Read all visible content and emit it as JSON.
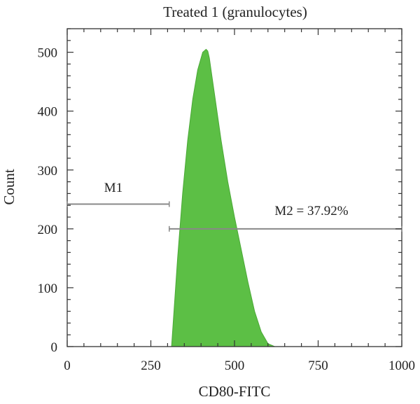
{
  "chart_data": {
    "type": "area",
    "title": "Treated 1 (granulocytes)",
    "xlabel": "CD80-FITC",
    "ylabel": "Count",
    "xlim": [
      0,
      1000
    ],
    "ylim": [
      0,
      540
    ],
    "xticks": [
      0,
      250,
      500,
      750,
      1000
    ],
    "yticks": [
      0,
      100,
      200,
      300,
      400,
      500
    ],
    "grid": false,
    "series": [
      {
        "color": "#5cbf45",
        "x": [
          312,
          330,
          345,
          360,
          375,
          390,
          405,
          415,
          420,
          425,
          430,
          440,
          460,
          480,
          500,
          520,
          540,
          560,
          580,
          600,
          620
        ],
        "y": [
          0,
          150,
          260,
          350,
          420,
          470,
          500,
          505,
          502,
          490,
          470,
          430,
          350,
          280,
          220,
          165,
          110,
          60,
          25,
          5,
          0
        ]
      }
    ],
    "markers": [
      {
        "label": "M1",
        "x_start": 0,
        "x_end": 305,
        "y": 242
      },
      {
        "label": "M2 = 37.92%",
        "x_start": 305,
        "x_end": 1000,
        "y": 200
      }
    ]
  }
}
